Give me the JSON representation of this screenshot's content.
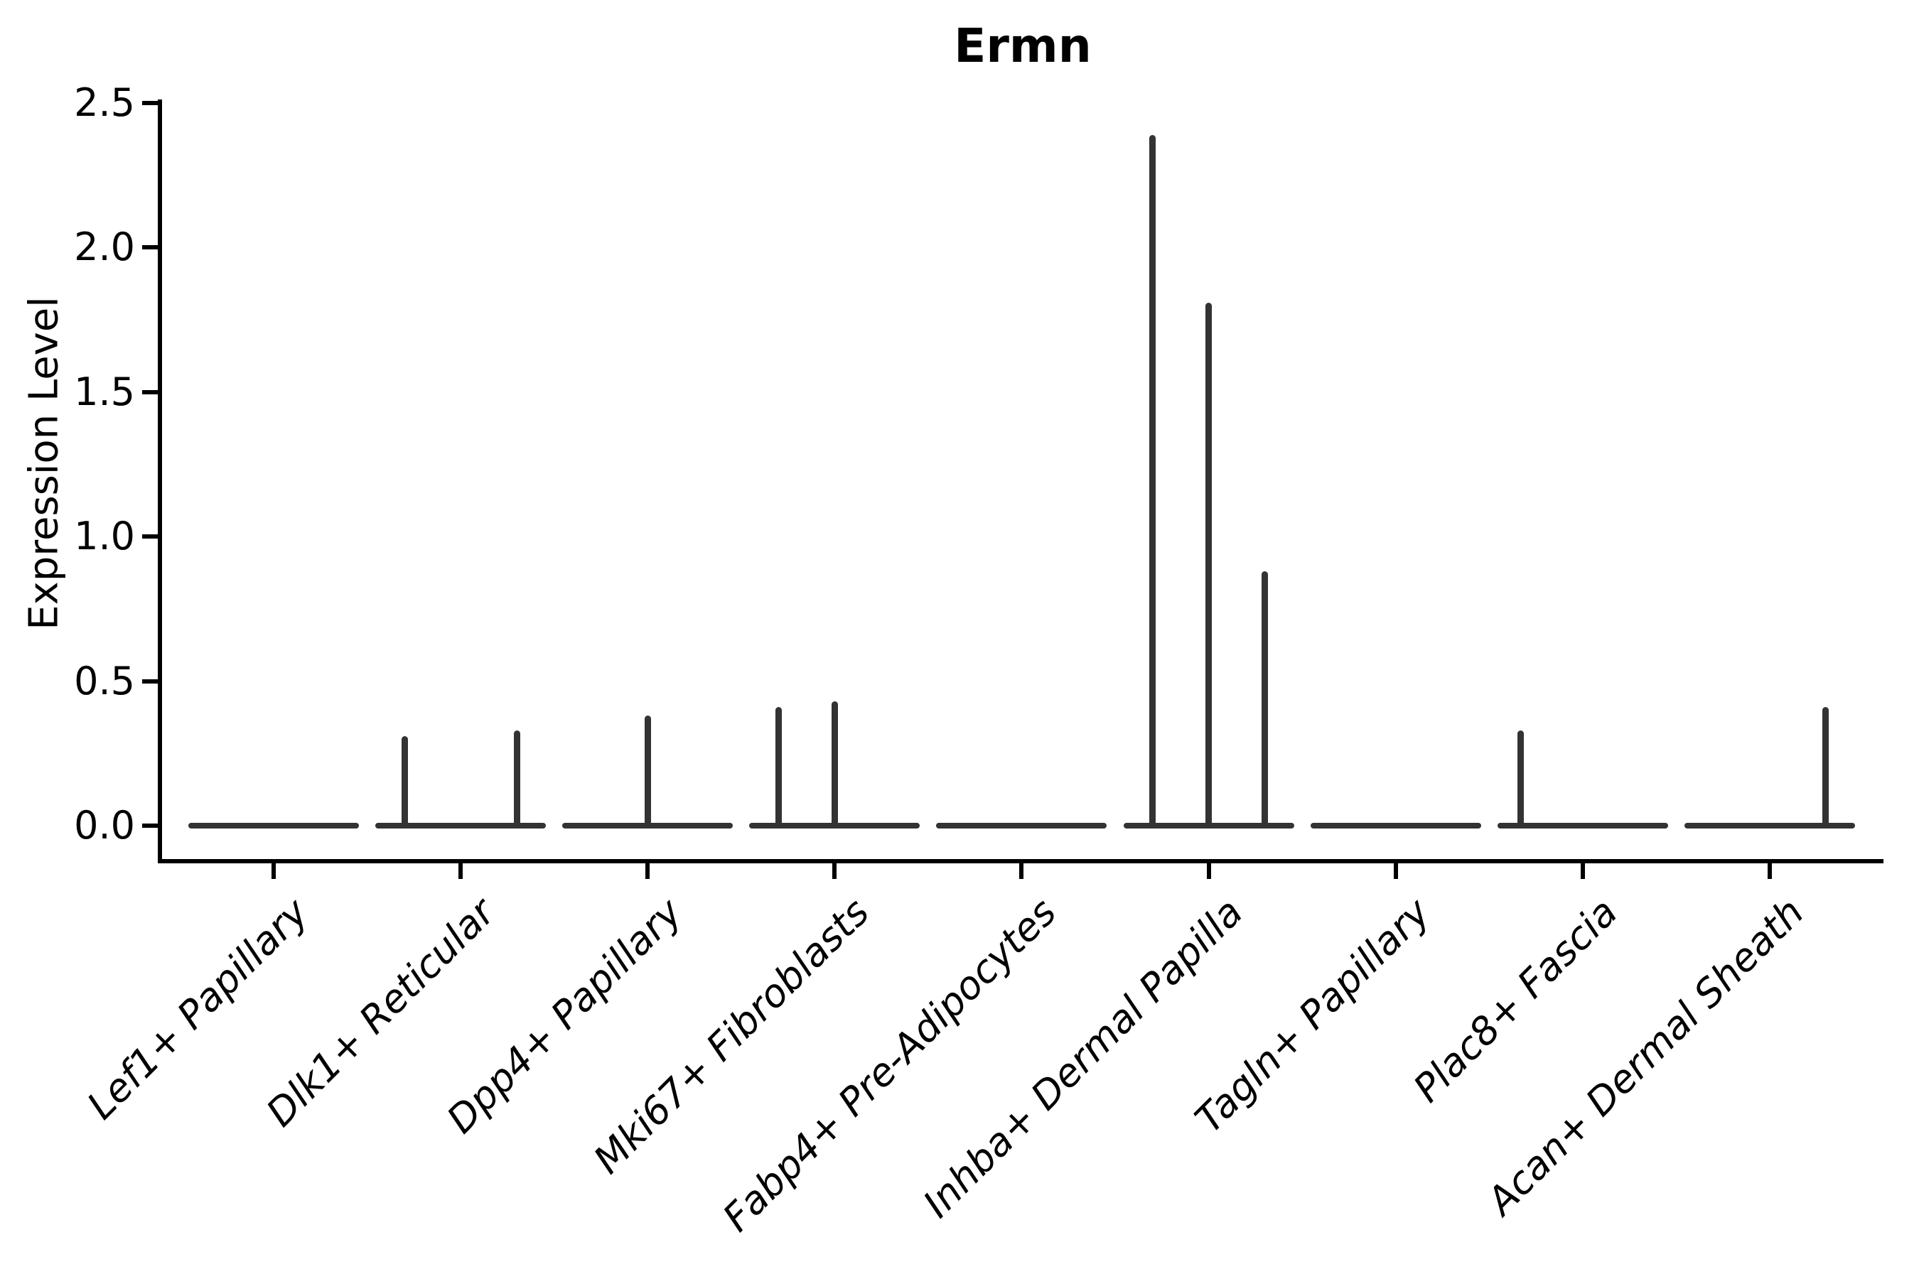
{
  "title": "Ermn",
  "ylabel": "Expression Level",
  "yticks": [
    {
      "label": "0.0",
      "value": 0.0
    },
    {
      "label": "0.5",
      "value": 0.5
    },
    {
      "label": "1.0",
      "value": 1.0
    },
    {
      "label": "1.5",
      "value": 1.5
    },
    {
      "label": "2.0",
      "value": 2.0
    },
    {
      "label": "2.5",
      "value": 2.5
    }
  ],
  "chart_data": {
    "type": "violin",
    "title": "Ermn",
    "xlabel": "",
    "ylabel": "Expression Level",
    "ylim": [
      -0.11,
      2.51
    ],
    "grid": false,
    "legend": "none",
    "categories": [
      "Lef1+ Papillary",
      "Dlk1+ Reticular",
      "Dpp4+ Papillary",
      "Mki67+ Fibroblasts",
      "Fabp4+ Pre-Adipocytes",
      "Inhba+ Dermal Papilla",
      "Tagln+ Papillary",
      "Plac8+ Fascia",
      "Acan+ Dermal Sheath"
    ],
    "series": [
      {
        "name": "Lef1+ Papillary",
        "baseline": 0.0,
        "spikes": []
      },
      {
        "name": "Dlk1+ Reticular",
        "baseline": 0.0,
        "spikes": [
          {
            "pos": -0.3,
            "value": 0.31
          },
          {
            "pos": 0.3,
            "value": 0.33
          }
        ]
      },
      {
        "name": "Dpp4+ Papillary",
        "baseline": 0.0,
        "spikes": [
          {
            "pos": 0.0,
            "value": 0.38
          }
        ]
      },
      {
        "name": "Mki67+ Fibroblasts",
        "baseline": 0.0,
        "spikes": [
          {
            "pos": -0.3,
            "value": 0.41
          },
          {
            "pos": 0.0,
            "value": 0.43
          }
        ]
      },
      {
        "name": "Fabp4+ Pre-Adipocytes",
        "baseline": 0.0,
        "spikes": []
      },
      {
        "name": "Inhba+ Dermal Papilla",
        "baseline": 0.0,
        "spikes": [
          {
            "pos": -0.3,
            "value": 2.39
          },
          {
            "pos": 0.0,
            "value": 1.81
          },
          {
            "pos": 0.3,
            "value": 0.88
          }
        ]
      },
      {
        "name": "Tagln+ Papillary",
        "baseline": 0.0,
        "spikes": []
      },
      {
        "name": "Plac8+ Fascia",
        "baseline": 0.0,
        "spikes": [
          {
            "pos": -0.33,
            "value": 0.33
          }
        ]
      },
      {
        "name": "Acan+ Dermal Sheath",
        "baseline": 0.0,
        "spikes": [
          {
            "pos": 0.3,
            "value": 0.41
          }
        ]
      }
    ]
  },
  "colors": {
    "violin": "#333333",
    "axis": "#000000",
    "background": "#ffffff",
    "text": "#000000"
  }
}
